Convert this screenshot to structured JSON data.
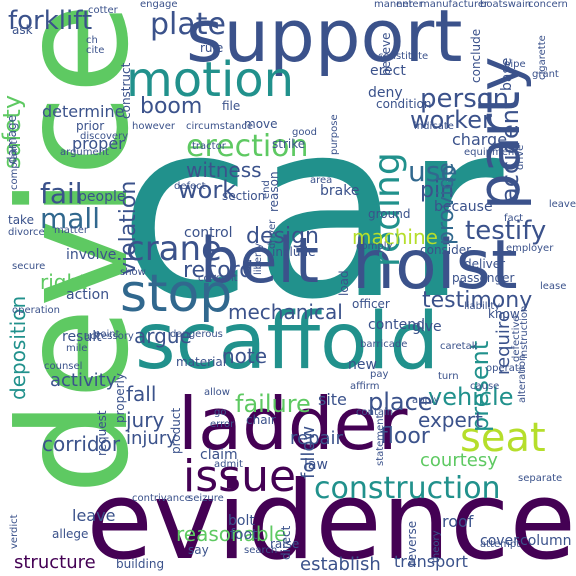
{
  "palette": {
    "navy": "#3b528b",
    "teal": "#21918c",
    "purple": "#440154",
    "violet": "#482878",
    "green": "#5ec962",
    "lime": "#b5de2b",
    "blue": "#31688e",
    "sea": "#35b779"
  },
  "words": [
    {
      "text": "car",
      "color": "#21918c"
    },
    {
      "text": "device",
      "color": "#5ec962"
    },
    {
      "text": "evidence",
      "color": "#440154"
    },
    {
      "text": "support",
      "color": "#3b528b"
    },
    {
      "text": "ladder",
      "color": "#440154"
    },
    {
      "text": "scaffold",
      "color": "#21918c"
    },
    {
      "text": "belt",
      "color": "#3b528b"
    },
    {
      "text": "hoist",
      "color": "#3b528b"
    },
    {
      "text": "motion",
      "color": "#21918c"
    },
    {
      "text": "party",
      "color": "#3b528b"
    },
    {
      "text": "plate",
      "color": "#3b528b"
    },
    {
      "text": "stop",
      "color": "#31688e"
    },
    {
      "text": "issue",
      "color": "#440154"
    },
    {
      "text": "construction",
      "color": "#21918c"
    },
    {
      "text": "seat",
      "color": "#b5de2b"
    },
    {
      "text": "forklift",
      "color": "#3b528b"
    },
    {
      "text": "crane",
      "color": "#3b528b"
    },
    {
      "text": "safety",
      "color": "#5ec962"
    },
    {
      "text": "reding",
      "color": "#21918c"
    },
    {
      "text": "person",
      "color": "#3b528b"
    },
    {
      "text": "worker",
      "color": "#3b528b"
    },
    {
      "text": "boom",
      "color": "#3b528b"
    },
    {
      "text": "erection",
      "color": "#5ec962"
    },
    {
      "text": "witness",
      "color": "#3b528b"
    },
    {
      "text": "work",
      "color": "#3b528b"
    },
    {
      "text": "use",
      "color": "#31688e"
    },
    {
      "text": "pin",
      "color": "#3b528b"
    },
    {
      "text": "mall",
      "color": "#31688e"
    },
    {
      "text": "fail",
      "color": "#3b528b"
    },
    {
      "text": "violation",
      "color": "#3b528b"
    },
    {
      "text": "testify",
      "color": "#3b528b"
    },
    {
      "text": "provide",
      "color": "#31688e"
    },
    {
      "text": "accident",
      "color": "#3b528b"
    },
    {
      "text": "design",
      "color": "#3b528b"
    },
    {
      "text": "machine",
      "color": "#b5de2b"
    },
    {
      "text": "record",
      "color": "#3b528b"
    },
    {
      "text": "deposition",
      "color": "#21918c"
    },
    {
      "text": "right",
      "color": "#5ec962"
    },
    {
      "text": "testimony",
      "color": "#3b528b"
    },
    {
      "text": "present",
      "color": "#21918c"
    },
    {
      "text": "mechanical",
      "color": "#3b528b"
    },
    {
      "text": "argue",
      "color": "#3b528b"
    },
    {
      "text": "note",
      "color": "#3b528b"
    },
    {
      "text": "require",
      "color": "#3b528b"
    },
    {
      "text": "failure",
      "color": "#5ec962"
    },
    {
      "text": "vehicle",
      "color": "#21918c"
    },
    {
      "text": "place",
      "color": "#3b528b"
    },
    {
      "text": "activity",
      "color": "#3b528b"
    },
    {
      "text": "fall",
      "color": "#3b528b"
    },
    {
      "text": "jury",
      "color": "#3b528b"
    },
    {
      "text": "injury",
      "color": "#3b528b"
    },
    {
      "text": "corridor",
      "color": "#3b528b"
    },
    {
      "text": "expert",
      "color": "#3b528b"
    },
    {
      "text": "floor",
      "color": "#3b528b"
    },
    {
      "text": "courtesy",
      "color": "#5ec962"
    },
    {
      "text": "repair",
      "color": "#3b528b"
    },
    {
      "text": "follow",
      "color": "#3b528b"
    },
    {
      "text": "structure",
      "color": "#440154"
    },
    {
      "text": "reasonable",
      "color": "#5ec962"
    },
    {
      "text": "establish",
      "color": "#3b528b"
    },
    {
      "text": "transport",
      "color": "#3b528b"
    },
    {
      "text": "cover",
      "color": "#3b528b"
    },
    {
      "text": "column",
      "color": "#3b528b"
    },
    {
      "text": "leave",
      "color": "#3b528b"
    },
    {
      "text": "bolt",
      "color": "#3b528b"
    },
    {
      "text": "foot",
      "color": "#3b528b"
    },
    {
      "text": "roof",
      "color": "#3b528b"
    },
    {
      "text": "law",
      "color": "#3b528b"
    },
    {
      "text": "claim",
      "color": "#3b528b"
    },
    {
      "text": "site",
      "color": "#3b528b"
    },
    {
      "text": "new",
      "color": "#3b528b"
    },
    {
      "text": "determine",
      "color": "#3b528b"
    },
    {
      "text": "proper",
      "color": "#3b528b"
    },
    {
      "text": "charge",
      "color": "#3b528b"
    },
    {
      "text": "because",
      "color": "#3b528b"
    },
    {
      "text": "brake",
      "color": "#3b528b"
    },
    {
      "text": "control",
      "color": "#3b528b"
    },
    {
      "text": "people",
      "color": "#3b528b"
    },
    {
      "text": "involve",
      "color": "#3b528b"
    },
    {
      "text": "action",
      "color": "#3b528b"
    },
    {
      "text": "result",
      "color": "#3b528b"
    },
    {
      "text": "give",
      "color": "#3b528b"
    },
    {
      "text": "contend",
      "color": "#3b528b"
    },
    {
      "text": "know",
      "color": "#3b528b"
    },
    {
      "text": "deliver",
      "color": "#3b528b"
    },
    {
      "text": "consider",
      "color": "#3b528b"
    },
    {
      "text": "passenger",
      "color": "#3b528b"
    },
    {
      "text": "ground",
      "color": "#3b528b"
    },
    {
      "text": "condition",
      "color": "#3b528b"
    },
    {
      "text": "deny",
      "color": "#3b528b"
    },
    {
      "text": "erect",
      "color": "#3b528b"
    },
    {
      "text": "rule",
      "color": "#3b528b"
    },
    {
      "text": "file",
      "color": "#3b528b"
    },
    {
      "text": "move",
      "color": "#3b528b"
    },
    {
      "text": "strike",
      "color": "#3b528b"
    },
    {
      "text": "section",
      "color": "#3b528b"
    },
    {
      "text": "reason",
      "color": "#3b528b"
    },
    {
      "text": "include",
      "color": "#3b528b"
    },
    {
      "text": "show",
      "color": "#3b528b"
    },
    {
      "text": "material",
      "color": "#3b528b"
    },
    {
      "text": "chair",
      "color": "#3b528b"
    },
    {
      "text": "take",
      "color": "#3b528b"
    },
    {
      "text": "damage",
      "color": "#3b528b"
    },
    {
      "text": "ask",
      "color": "#3b528b"
    },
    {
      "text": "prior",
      "color": "#3b528b"
    },
    {
      "text": "discovery",
      "color": "#3b528b"
    },
    {
      "text": "complaint",
      "color": "#3b528b"
    },
    {
      "text": "officer",
      "color": "#3b528b"
    },
    {
      "text": "request",
      "color": "#3b528b"
    },
    {
      "text": "properly",
      "color": "#3b528b"
    },
    {
      "text": "product",
      "color": "#3b528b"
    },
    {
      "text": "say",
      "color": "#3b528b"
    },
    {
      "text": "building",
      "color": "#3b528b"
    },
    {
      "text": "raise",
      "color": "#3b528b"
    },
    {
      "text": "search",
      "color": "#3b528b"
    },
    {
      "text": "direct",
      "color": "#3b528b"
    },
    {
      "text": "reverse",
      "color": "#3b528b"
    },
    {
      "text": "base",
      "color": "#3b528b"
    },
    {
      "text": "conclude",
      "color": "#3b528b"
    },
    {
      "text": "believe",
      "color": "#3b528b"
    },
    {
      "text": "construct",
      "color": "#3b528b"
    },
    {
      "text": "defective",
      "color": "#3b528b"
    },
    {
      "text": "instruction",
      "color": "#3b528b"
    },
    {
      "text": "load",
      "color": "#3b528b"
    },
    {
      "text": "separate",
      "color": "#3b528b"
    },
    {
      "text": "allege",
      "color": "#3b528b"
    },
    {
      "text": "verdict",
      "color": "#3b528b"
    },
    {
      "text": "cotter",
      "color": "#3b528b"
    },
    {
      "text": "engage",
      "color": "#3b528b"
    },
    {
      "text": "manner",
      "color": "#3b528b"
    },
    {
      "text": "enter",
      "color": "#3b528b"
    },
    {
      "text": "manufacturer",
      "color": "#3b528b"
    },
    {
      "text": "boatswain",
      "color": "#3b528b"
    },
    {
      "text": "concern",
      "color": "#3b528b"
    },
    {
      "text": "constitute",
      "color": "#3b528b"
    },
    {
      "text": "cigarette",
      "color": "#3b528b"
    },
    {
      "text": "grant",
      "color": "#3b528b"
    },
    {
      "text": "circumstance",
      "color": "#3b528b"
    },
    {
      "text": "indicate",
      "color": "#3b528b"
    },
    {
      "text": "however",
      "color": "#3b528b"
    },
    {
      "text": "tractor",
      "color": "#3b528b"
    },
    {
      "text": "good",
      "color": "#3b528b"
    },
    {
      "text": "purpose",
      "color": "#3b528b"
    },
    {
      "text": "equipment",
      "color": "#3b528b"
    },
    {
      "text": "drive",
      "color": "#3b528b"
    },
    {
      "text": "area",
      "color": "#3b528b"
    },
    {
      "text": "end",
      "color": "#3b528b"
    },
    {
      "text": "defect",
      "color": "#3b528b"
    },
    {
      "text": "driver",
      "color": "#3b528b"
    },
    {
      "text": "comply",
      "color": "#3b528b"
    },
    {
      "text": "liberty",
      "color": "#3b528b"
    },
    {
      "text": "accessory",
      "color": "#3b528b"
    },
    {
      "text": "consent",
      "color": "#3b528b"
    },
    {
      "text": "point",
      "color": "#3b528b"
    },
    {
      "text": "mile",
      "color": "#3b528b"
    },
    {
      "text": "counsel",
      "color": "#3b528b"
    },
    {
      "text": "dangerous",
      "color": "#3b528b"
    },
    {
      "text": "allow",
      "color": "#3b528b"
    },
    {
      "text": "affirm",
      "color": "#3b528b"
    },
    {
      "text": "pay",
      "color": "#3b528b"
    },
    {
      "text": "turn",
      "color": "#3b528b"
    },
    {
      "text": "cause",
      "color": "#3b528b"
    },
    {
      "text": "alteration",
      "color": "#3b528b"
    },
    {
      "text": "caretak",
      "color": "#3b528b"
    },
    {
      "text": "contain",
      "color": "#3b528b"
    },
    {
      "text": "statement",
      "color": "#3b528b"
    },
    {
      "text": "error",
      "color": "#3b528b"
    },
    {
      "text": "go",
      "color": "#3b528b"
    },
    {
      "text": "admit",
      "color": "#3b528b"
    },
    {
      "text": "contrivance",
      "color": "#3b528b"
    },
    {
      "text": "seizure",
      "color": "#3b528b"
    },
    {
      "text": "attempt",
      "color": "#3b528b"
    },
    {
      "text": "operate",
      "color": "#3b528b"
    },
    {
      "text": "apply",
      "color": "#3b528b"
    },
    {
      "text": "barricade",
      "color": "#3b528b"
    },
    {
      "text": "employer",
      "color": "#3b528b"
    },
    {
      "text": "argument",
      "color": "#3b528b"
    },
    {
      "text": "secure",
      "color": "#3b528b"
    },
    {
      "text": "divorce",
      "color": "#3b528b"
    },
    {
      "text": "matter",
      "color": "#3b528b"
    },
    {
      "text": "operation",
      "color": "#3b528b"
    },
    {
      "text": "liability",
      "color": "#3b528b"
    },
    {
      "text": "ch",
      "color": "#3b528b"
    },
    {
      "text": "cite",
      "color": "#3b528b"
    },
    {
      "text": "fact",
      "color": "#3b528b"
    },
    {
      "text": "lease",
      "color": "#3b528b"
    },
    {
      "text": "leave",
      "color": "#3b528b"
    },
    {
      "text": "pipe",
      "color": "#3b528b"
    },
    {
      "text": "theory",
      "color": "#3b528b"
    }
  ]
}
